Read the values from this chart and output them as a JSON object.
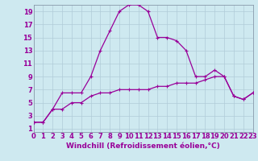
{
  "xlabel": "Windchill (Refroidissement éolien,°C)",
  "background_color": "#cee9f0",
  "line_color": "#990099",
  "xlim": [
    0,
    23
  ],
  "ylim": [
    0.5,
    20
  ],
  "xticks": [
    0,
    1,
    2,
    3,
    4,
    5,
    6,
    7,
    8,
    9,
    10,
    11,
    12,
    13,
    14,
    15,
    16,
    17,
    18,
    19,
    20,
    21,
    22,
    23
  ],
  "yticks": [
    1,
    3,
    5,
    7,
    9,
    11,
    13,
    15,
    17,
    19
  ],
  "line1_x": [
    0,
    1,
    2,
    3,
    4,
    5,
    6,
    7,
    8,
    9,
    10,
    11,
    12,
    13,
    14,
    15,
    16,
    17,
    18,
    19,
    20,
    21,
    22,
    23
  ],
  "line1_y": [
    2,
    2,
    4,
    6.5,
    6.5,
    6.5,
    9,
    13,
    16,
    19,
    20,
    20,
    19,
    15,
    15,
    14.5,
    13,
    9,
    9,
    10,
    9,
    6,
    5.5,
    6.5
  ],
  "line2_x": [
    0,
    1,
    2,
    3,
    4,
    5,
    6,
    7,
    8,
    9,
    10,
    11,
    12,
    13,
    14,
    15,
    16,
    17,
    18,
    19,
    20,
    21,
    22,
    23
  ],
  "line2_y": [
    2,
    2,
    4,
    4,
    5,
    5,
    6,
    6.5,
    6.5,
    7,
    7,
    7,
    7,
    7.5,
    7.5,
    8,
    8,
    8,
    8.5,
    9,
    9,
    6,
    5.5,
    6.5
  ],
  "grid_color": "#b0ccd8",
  "spine_color": "#8899aa",
  "xlabel_fontsize": 6.5,
  "tick_fontsize": 6.0
}
